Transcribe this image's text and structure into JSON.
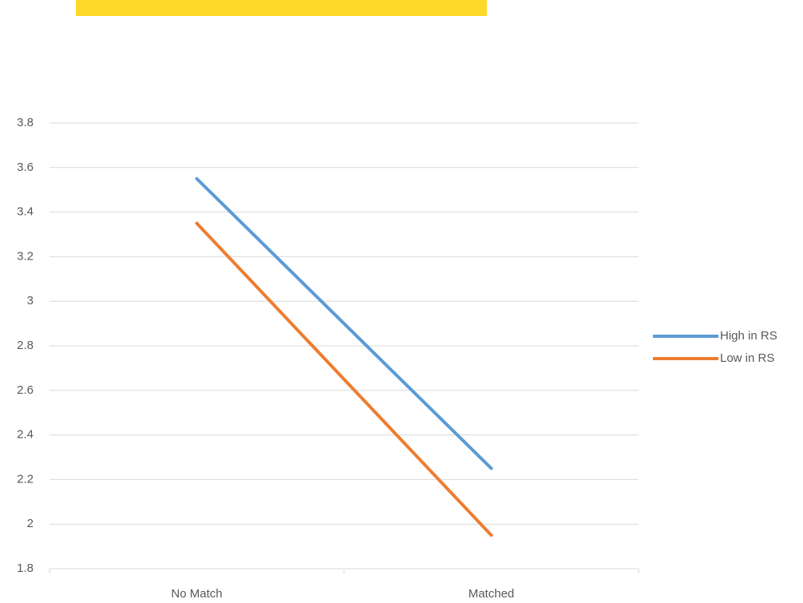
{
  "chart_data": {
    "type": "line",
    "categories": [
      "No Match",
      "Matched"
    ],
    "series": [
      {
        "name": "High in RS",
        "color": "#5b9bd5",
        "values": [
          3.55,
          2.25
        ]
      },
      {
        "name": "Low in RS",
        "color": "#ed7d31",
        "values": [
          3.35,
          1.95
        ]
      }
    ],
    "ylim": [
      1.8,
      3.8
    ],
    "yticks": [
      1.8,
      2,
      2.2,
      2.4,
      2.6,
      2.8,
      3,
      3.2,
      3.4,
      3.6,
      3.8
    ],
    "grid": true,
    "legend": "right"
  }
}
